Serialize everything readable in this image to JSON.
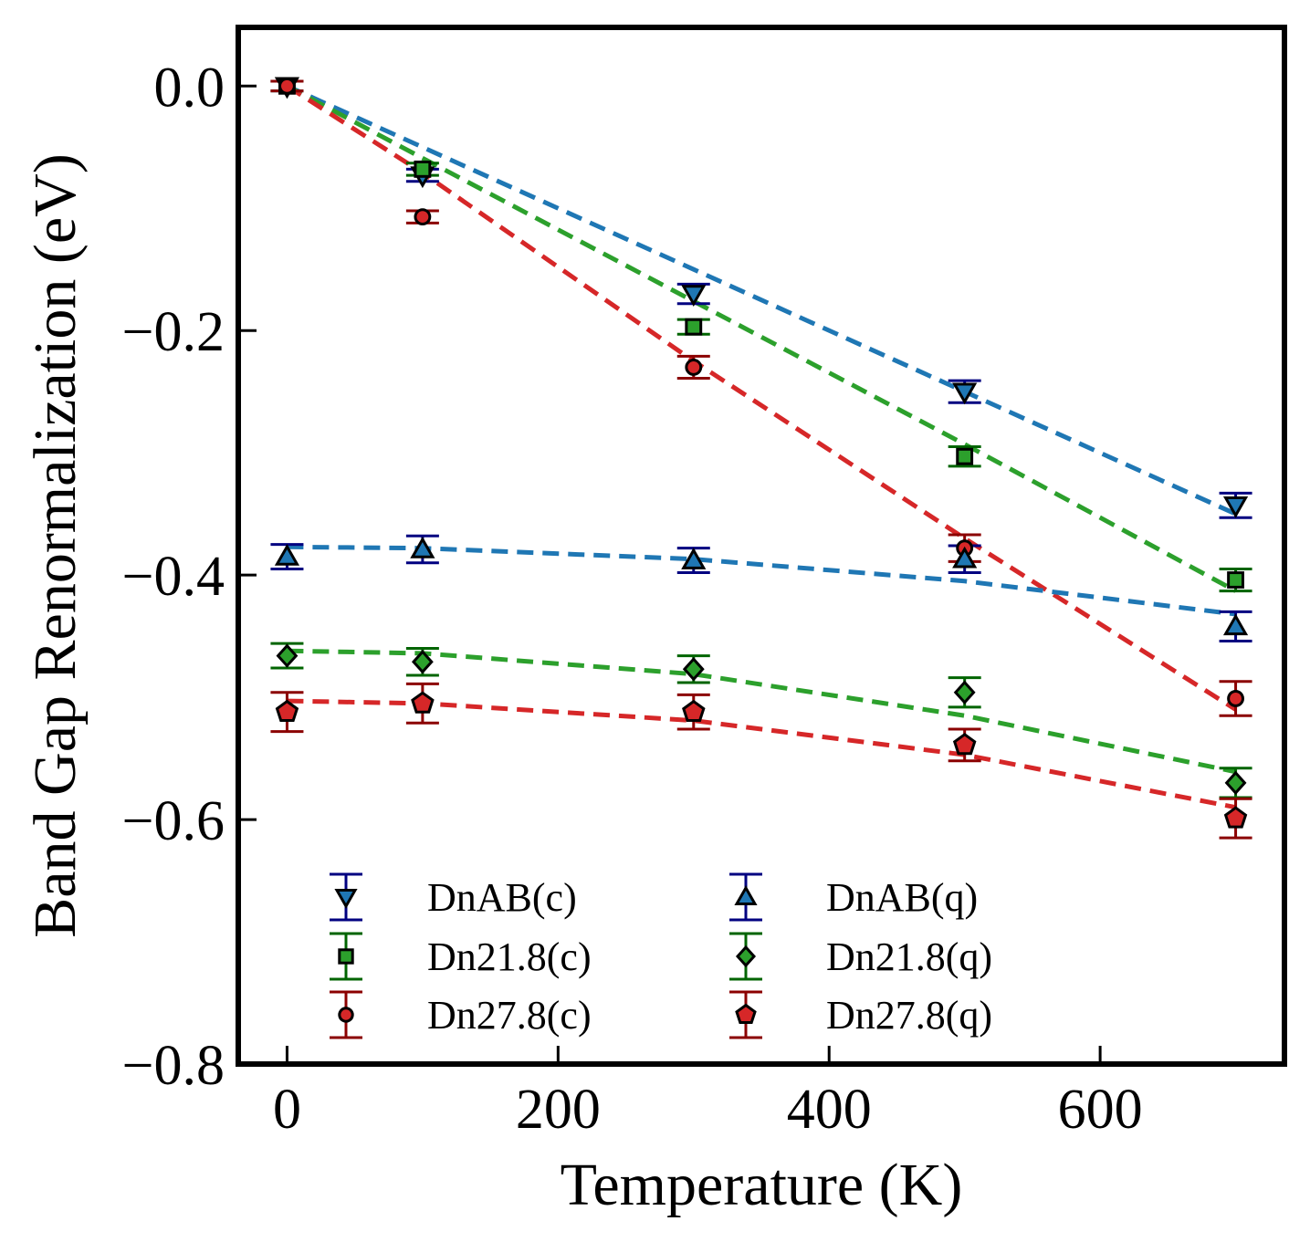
{
  "chart_data": {
    "type": "scatter",
    "title": "",
    "xlabel": "Temperature (K)",
    "ylabel": "Band Gap Renormalization (eV)",
    "xlim": [
      -36,
      736
    ],
    "ylim": [
      -0.8,
      0.048
    ],
    "xticks": [
      0,
      200,
      400,
      600
    ],
    "yticks": [
      0.0,
      -0.2,
      -0.4,
      -0.6,
      -0.8
    ],
    "xtick_labels": [
      "0",
      "200",
      "400",
      "600"
    ],
    "ytick_labels": [
      "0.0",
      "−0.2",
      "−0.4",
      "−0.6",
      "−0.8"
    ],
    "legend": {
      "position": "lower-left",
      "columns": 2
    },
    "series": [
      {
        "name": "DnAB(c)",
        "marker": "triangle-down",
        "color": "#1f77b4",
        "err_color": "#000080",
        "x": [
          0,
          100,
          300,
          500,
          700
        ],
        "y": [
          0.0,
          -0.073,
          -0.17,
          -0.25,
          -0.343
        ],
        "err": [
          0.004,
          0.005,
          0.008,
          0.009,
          0.01
        ],
        "fit_x": [
          0,
          100,
          300,
          500,
          700
        ],
        "fit_y": [
          0.0,
          -0.05,
          -0.15,
          -0.25,
          -0.35
        ]
      },
      {
        "name": "Dn21.8(c)",
        "marker": "square",
        "color": "#2ca02c",
        "err_color": "#006400",
        "x": [
          0,
          100,
          300,
          500,
          700
        ],
        "y": [
          0.0,
          -0.068,
          -0.197,
          -0.303,
          -0.404
        ],
        "err": [
          0.004,
          0.005,
          0.006,
          0.008,
          0.009
        ],
        "fit_x": [
          0,
          100,
          300,
          500,
          700
        ],
        "fit_y": [
          0.0,
          -0.059,
          -0.176,
          -0.293,
          -0.413
        ]
      },
      {
        "name": "Dn27.8(c)",
        "marker": "circle",
        "color": "#d62728",
        "err_color": "#8b0000",
        "x": [
          0,
          100,
          300,
          500,
          700
        ],
        "y": [
          0.0,
          -0.107,
          -0.23,
          -0.378,
          -0.501
        ],
        "err": [
          0.004,
          0.005,
          0.009,
          0.011,
          0.014
        ],
        "fit_x": [
          0,
          100,
          300,
          500,
          700
        ],
        "fit_y": [
          0.0,
          -0.071,
          -0.225,
          -0.37,
          -0.51
        ]
      },
      {
        "name": "DnAB(q)",
        "marker": "triangle-up",
        "color": "#1f77b4",
        "err_color": "#000080",
        "x": [
          0,
          100,
          300,
          500,
          700
        ],
        "y": [
          -0.385,
          -0.379,
          -0.388,
          -0.387,
          -0.442
        ],
        "err": [
          0.01,
          0.011,
          0.01,
          0.011,
          0.012
        ],
        "fit_x": [
          0,
          100,
          300,
          500,
          700
        ],
        "fit_y": [
          -0.377,
          -0.378,
          -0.387,
          -0.405,
          -0.432
        ]
      },
      {
        "name": "Dn21.8(q)",
        "marker": "diamond",
        "color": "#2ca02c",
        "err_color": "#006400",
        "x": [
          0,
          100,
          300,
          500,
          700
        ],
        "y": [
          -0.466,
          -0.471,
          -0.477,
          -0.496,
          -0.57
        ],
        "err": [
          0.01,
          0.011,
          0.011,
          0.012,
          0.012
        ],
        "fit_x": [
          0,
          100,
          300,
          500,
          700
        ],
        "fit_y": [
          -0.462,
          -0.464,
          -0.481,
          -0.515,
          -0.561
        ]
      },
      {
        "name": "Dn27.8(q)",
        "marker": "pentagon",
        "color": "#d62728",
        "err_color": "#8b0000",
        "x": [
          0,
          100,
          300,
          500,
          700
        ],
        "y": [
          -0.512,
          -0.505,
          -0.512,
          -0.539,
          -0.599
        ],
        "err": [
          0.016,
          0.016,
          0.014,
          0.013,
          0.016
        ],
        "fit_x": [
          0,
          100,
          300,
          500,
          700
        ],
        "fit_y": [
          -0.503,
          -0.505,
          -0.519,
          -0.547,
          -0.59
        ]
      }
    ]
  }
}
